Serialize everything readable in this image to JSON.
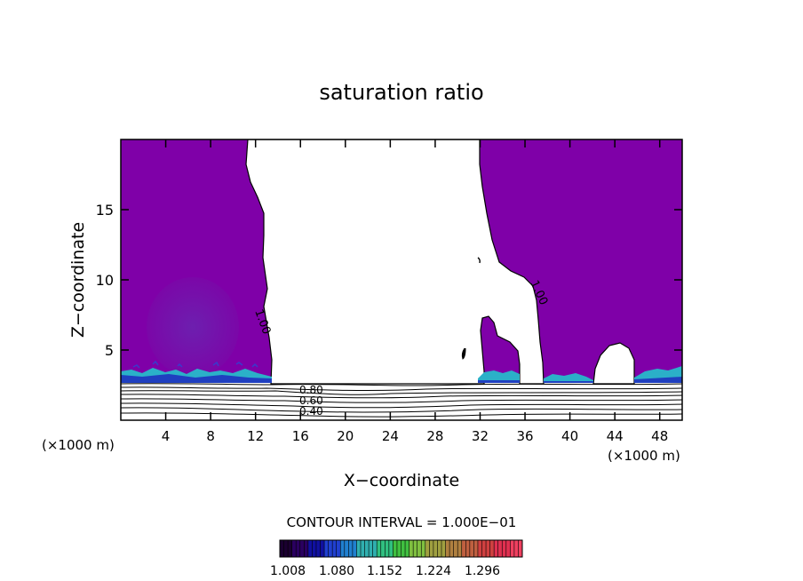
{
  "chart_data": {
    "type": "heatmap",
    "title": "saturation ratio",
    "xlabel": "X−coordinate",
    "ylabel": "Z−coordinate",
    "x_unit": "(×1000 m)",
    "z_unit": "(×1000 m)",
    "xlim": [
      0,
      50
    ],
    "ylim": [
      0,
      20
    ],
    "x_ticks": [
      4,
      8,
      12,
      16,
      20,
      24,
      28,
      32,
      36,
      40,
      44,
      48
    ],
    "x_tick_labels": [
      "4",
      "8",
      "12",
      "16",
      "20",
      "24",
      "28",
      "32",
      "36",
      "40",
      "44",
      "48"
    ],
    "y_ticks": [
      5,
      10,
      15
    ],
    "y_tick_labels": [
      "5",
      "10",
      "15"
    ],
    "contour_interval_label": "CONTOUR INTERVAL = 1.000E−01",
    "contour_labels": [
      {
        "text": "1.00",
        "x": 12.9,
        "z": 6.8
      },
      {
        "text": "1.00",
        "x": 37.4,
        "z": 9.0
      },
      {
        "text": "0.80",
        "x": 17.0,
        "z": 2.1
      },
      {
        "text": "0.60",
        "x": 17.0,
        "z": 1.6
      },
      {
        "text": "0.40",
        "x": 17.0,
        "z": 1.1
      }
    ],
    "colorbar": {
      "tick_labels": [
        "1.008",
        "1.080",
        "1.152",
        "1.224",
        "1.296"
      ],
      "colors": [
        "#1a0030",
        "#2a0060",
        "#1010a0",
        "#2040d0",
        "#2080d0",
        "#30b0b0",
        "#30c080",
        "#40c040",
        "#80c040",
        "#a0a040",
        "#b08040",
        "#c06040",
        "#d04040",
        "#e03050",
        "#f04060"
      ]
    },
    "dominant_color": "#7f00a8"
  }
}
